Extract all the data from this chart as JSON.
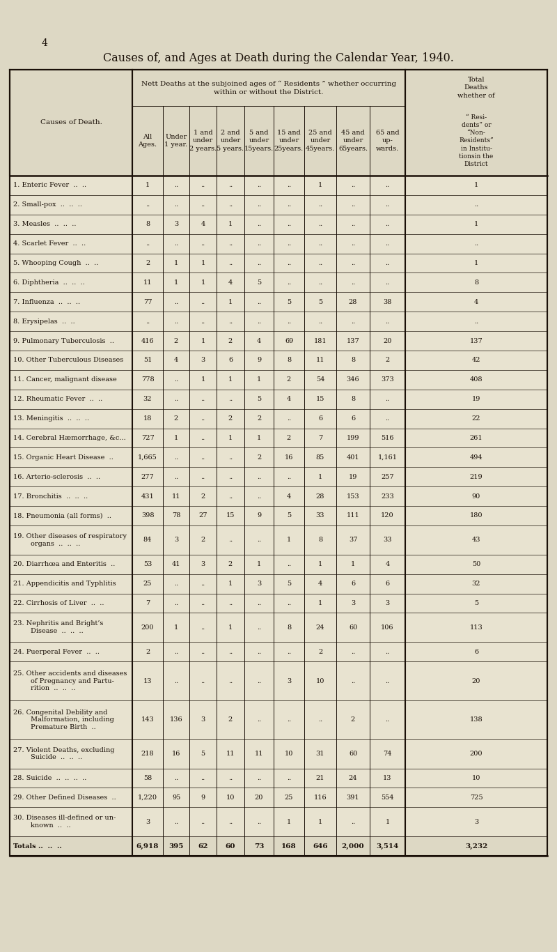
{
  "page_number": "4",
  "title": "Causes of, and Ages at Death during the Calendar Year, 1940.",
  "bg_color": "#ddd8c4",
  "table_bg": "#e8e3d0",
  "header_bg": "#ddd8c4",
  "border_color": "#1a1008",
  "text_color": "#1a1008",
  "rows": [
    {
      "label": "1. Enteric Fever  ..  ..",
      "all": "1",
      "u1": "",
      "1u2": "",
      "2u5": "",
      "5u15": "",
      "15u25": "",
      "25u45": "1",
      "45u65": "",
      "65up": "",
      "total": "1"
    },
    {
      "label": "2. Small-pox  ..  ..  ..",
      "all": "",
      "u1": "",
      "1u2": "",
      "2u5": "",
      "5u15": "",
      "15u25": "",
      "25u45": "",
      "45u65": "",
      "65up": "",
      "total": ""
    },
    {
      "label": "3. Measles  ..  ..  ..",
      "all": "8",
      "u1": "3",
      "1u2": "4",
      "2u5": "1",
      "5u15": "",
      "15u25": "",
      "25u45": "",
      "45u65": "",
      "65up": "",
      "total": "1"
    },
    {
      "label": "4. Scarlet Fever  ..  ..",
      "all": "",
      "u1": "",
      "1u2": "",
      "2u5": "",
      "5u15": "",
      "15u25": "",
      "25u45": "",
      "45u65": "",
      "65up": "",
      "total": ""
    },
    {
      "label": "5. Whooping Cough  ..  ..",
      "all": "2",
      "u1": "1",
      "1u2": "1",
      "2u5": "",
      "5u15": "",
      "15u25": "",
      "25u45": "",
      "45u65": "",
      "65up": "",
      "total": "1"
    },
    {
      "label": "6. Diphtheria  ..  ..  ..",
      "all": "11",
      "u1": "1",
      "1u2": "1",
      "2u5": "4",
      "5u15": "5",
      "15u25": "",
      "25u45": "",
      "45u65": "",
      "65up": "",
      "total": "8"
    },
    {
      "label": "7. Influenza  ..  ..  ..",
      "all": "77",
      "u1": "",
      "1u2": "",
      "2u5": "1",
      "5u15": "",
      "15u25": "5",
      "25u45": "5",
      "45u65": "28",
      "65up": "38",
      "total": "4"
    },
    {
      "label": "8. Erysipelas  ..  ..",
      "all": "",
      "u1": "",
      "1u2": "",
      "2u5": "",
      "5u15": "",
      "15u25": "",
      "25u45": "",
      "45u65": "",
      "65up": "",
      "total": ""
    },
    {
      "label": "9. Pulmonary Tuberculosis  ..",
      "all": "416",
      "u1": "2",
      "1u2": "1",
      "2u5": "2",
      "5u15": "4",
      "15u25": "69",
      "25u45": "181",
      "45u65": "137",
      "65up": "20",
      "total": "137"
    },
    {
      "label": "10. Other Tuberculous Diseases",
      "all": "51",
      "u1": "4",
      "1u2": "3",
      "2u5": "6",
      "5u15": "9",
      "15u25": "8",
      "25u45": "11",
      "45u65": "8",
      "65up": "2",
      "total": "42"
    },
    {
      "label": "11. Cancer, malignant disease",
      "all": "778",
      "u1": "",
      "1u2": "1",
      "2u5": "1",
      "5u15": "1",
      "15u25": "2",
      "25u45": "54",
      "45u65": "346",
      "65up": "373",
      "total": "408"
    },
    {
      "label": "12. Rheumatic Fever  ..  ..",
      "all": "32",
      "u1": "",
      "1u2": "",
      "2u5": "",
      "5u15": "5",
      "15u25": "4",
      "25u45": "15",
      "45u65": "8",
      "65up": "",
      "total": "19"
    },
    {
      "label": "13. Meningitis  ..  ..  ..",
      "all": "18",
      "u1": "2",
      "1u2": "",
      "2u5": "2",
      "5u15": "2",
      "15u25": "",
      "25u45": "6",
      "45u65": "6",
      "65up": "",
      "total": "22"
    },
    {
      "label": "14. Cerebral Hæmorrhage, &c...",
      "all": "727",
      "u1": "1",
      "1u2": "",
      "2u5": "1",
      "5u15": "1",
      "15u25": "2",
      "25u45": "7",
      "45u65": "199",
      "65up": "516",
      "total": "261"
    },
    {
      "label": "15. Organic Heart Disease  ..",
      "all": "1,665",
      "u1": "",
      "1u2": "",
      "2u5": "",
      "5u15": "2",
      "15u25": "16",
      "25u45": "85",
      "45u65": "401",
      "65up": "1,161",
      "total": "494"
    },
    {
      "label": "16. Arterio-sclerosis  ..  ..",
      "all": "277",
      "u1": "",
      "1u2": "",
      "2u5": "",
      "5u15": "",
      "15u25": "",
      "25u45": "1",
      "45u65": "19",
      "65up": "257",
      "total": "219"
    },
    {
      "label": "17. Bronchitis  ..  ..  ..",
      "all": "431",
      "u1": "11",
      "1u2": "2",
      "2u5": "",
      "5u15": "",
      "15u25": "4",
      "25u45": "28",
      "45u65": "153",
      "65up": "233",
      "total": "90"
    },
    {
      "label": "18. Pneumonia (all forms)  ..",
      "all": "398",
      "u1": "78",
      "1u2": "27",
      "2u5": "15",
      "5u15": "9",
      "15u25": "5",
      "25u45": "33",
      "45u65": "111",
      "65up": "120",
      "total": "180"
    },
    {
      "label": "19. Other diseases of respiratory\n        organs  ..  ..  ..",
      "all": "84",
      "u1": "3",
      "1u2": "2",
      "2u5": "",
      "5u15": "",
      "15u25": "1",
      "25u45": "8",
      "45u65": "37",
      "65up": "33",
      "total": "43"
    },
    {
      "label": "20. Diarrhœa and Enteritis  ..",
      "all": "53",
      "u1": "41",
      "1u2": "3",
      "2u5": "2",
      "5u15": "1",
      "15u25": "",
      "25u45": "1",
      "45u65": "1",
      "65up": "4",
      "total": "50"
    },
    {
      "label": "21. Appendicitis and Typhlitis",
      "all": "25",
      "u1": "",
      "1u2": "",
      "2u5": "1",
      "5u15": "3",
      "15u25": "5",
      "25u45": "4",
      "45u65": "6",
      "65up": "6",
      "total": "32"
    },
    {
      "label": "22. Cirrhosis of Liver  ..  ..",
      "all": "7",
      "u1": "",
      "1u2": "",
      "2u5": "",
      "5u15": "",
      "15u25": "",
      "25u45": "1",
      "45u65": "3",
      "65up": "3",
      "total": "5"
    },
    {
      "label": "23. Nephritis and Bright’s\n        Disease  ..  ..  ..",
      "all": "200",
      "u1": "1",
      "1u2": "",
      "2u5": "1",
      "5u15": "",
      "15u25": "8",
      "25u45": "24",
      "45u65": "60",
      "65up": "106",
      "total": "113"
    },
    {
      "label": "24. Puerperal Fever  ..  ..",
      "all": "2",
      "u1": "",
      "1u2": "",
      "2u5": "",
      "5u15": "",
      "15u25": "",
      "25u45": "2",
      "45u65": "",
      "65up": "",
      "total": "6"
    },
    {
      "label": "25. Other accidents and diseases\n        of Pregnancy and Partu-\n        rition  ..  ..  ..",
      "all": "13",
      "u1": "",
      "1u2": "",
      "2u5": "",
      "5u15": "",
      "15u25": "3",
      "25u45": "10",
      "45u65": "",
      "65up": "",
      "total": "20"
    },
    {
      "label": "26. Congenital Debility and\n        Malformation, including\n        Premature Birth  ..",
      "all": "143",
      "u1": "136",
      "1u2": "3",
      "2u5": "2",
      "5u15": "",
      "15u25": "",
      "25u45": "",
      "45u65": "2",
      "65up": "",
      "total": "138"
    },
    {
      "label": "27. Violent Deaths, excluding\n        Suicide  ..  ..  ..",
      "all": "218",
      "u1": "16",
      "1u2": "5",
      "2u5": "11",
      "5u15": "11",
      "15u25": "10",
      "25u45": "31",
      "45u65": "60",
      "65up": "74",
      "total": "200"
    },
    {
      "label": "28. Suicide  ..  ..  ..  ..",
      "all": "58",
      "u1": "",
      "1u2": "",
      "2u5": "",
      "5u15": "",
      "15u25": "",
      "25u45": "21",
      "45u65": "24",
      "65up": "13",
      "total": "10"
    },
    {
      "label": "29. Other Defined Diseases  ..",
      "all": "1,220",
      "u1": "95",
      "1u2": "9",
      "2u5": "10",
      "5u15": "20",
      "15u25": "25",
      "25u45": "116",
      "45u65": "391",
      "65up": "554",
      "total": "725"
    },
    {
      "label": "30. Diseases ill-defined or un-\n        known  ..  ..",
      "all": "3",
      "u1": "",
      "1u2": "",
      "2u5": "",
      "5u15": "",
      "15u25": "1",
      "25u45": "1",
      "45u65": "",
      "65up": "1",
      "total": "3"
    },
    {
      "label": "Totals ..  ..  ..",
      "all": "6,918",
      "u1": "395",
      "1u2": "62",
      "2u5": "60",
      "5u15": "73",
      "15u25": "168",
      "25u45": "646",
      "45u65": "2,000",
      "65up": "3,514",
      "total": "3,232",
      "is_total": true
    }
  ]
}
